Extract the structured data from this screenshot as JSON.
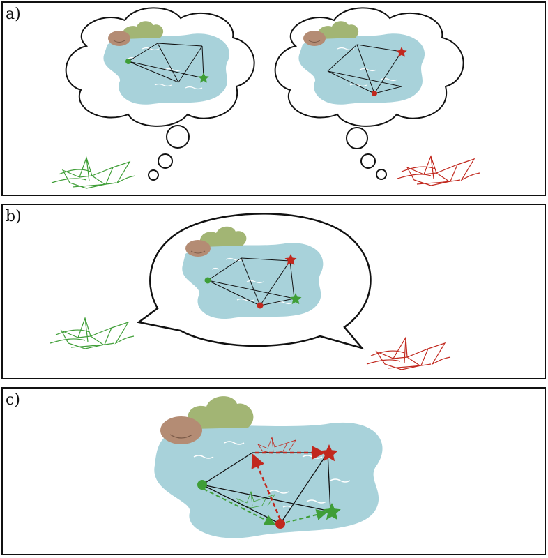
{
  "panels": {
    "a": {
      "label": "a)"
    },
    "b": {
      "label": "b)"
    },
    "c": {
      "label": "c)"
    }
  },
  "colors": {
    "water": "#a8d2da",
    "bush": "#a2b574",
    "rock": "#b48c74",
    "green_agent": "#3f9e37",
    "red_agent": "#c1281e",
    "outline": "#111111",
    "wave": "#ffffff"
  },
  "icons": {
    "green_boat": "paper-boat-icon",
    "red_boat": "paper-boat-icon",
    "thought_bubble": "thought-bubble-icon",
    "speech_bubble": "speech-bubble-icon",
    "start_marker": "dot-icon",
    "goal_marker": "star-icon"
  }
}
